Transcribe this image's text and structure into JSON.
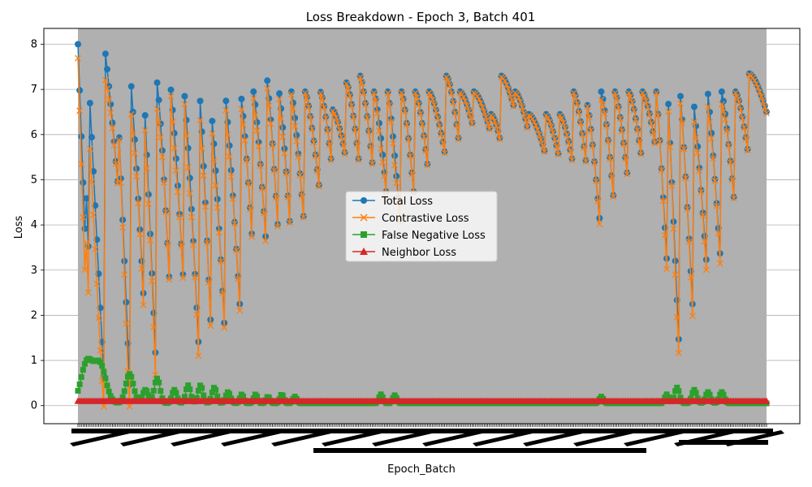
{
  "chart_data": {
    "type": "line",
    "title": "Loss Breakdown - Epoch 3, Batch 401",
    "xlabel": "Epoch_Batch",
    "ylabel": "Loss",
    "ylim": [
      -0.4,
      8.35
    ],
    "yticks": [
      0,
      1,
      2,
      3,
      4,
      5,
      6,
      7,
      8
    ],
    "ytick_labels": [
      "0",
      "1",
      "2",
      "3",
      "4",
      "5",
      "6",
      "7",
      "8"
    ],
    "grid": "horizontal",
    "legend_position": "center",
    "n_points": 401,
    "segments": [
      {
        "start": 0.0,
        "peak": 8.0,
        "end": 3.1,
        "shape": 1.0
      },
      {
        "start": 0.012,
        "peak": 4.8,
        "end": 3.1,
        "shape": 1.0
      },
      {
        "start": 0.016,
        "peak": 7.15,
        "end": 0.2,
        "shape": 1.0
      },
      {
        "start": 0.039,
        "peak": 7.9,
        "end": 4.7,
        "shape": 0.9
      },
      {
        "start": 0.059,
        "peak": 6.3,
        "end": 0.1,
        "shape": 1.0
      },
      {
        "start": 0.076,
        "peak": 7.35,
        "end": 2.2,
        "shape": 0.9
      },
      {
        "start": 0.096,
        "peak": 6.95,
        "end": 0.3,
        "shape": 1.0
      },
      {
        "start": 0.115,
        "peak": 7.15,
        "end": 2.7,
        "shape": 0.8
      },
      {
        "start": 0.133,
        "peak": 7.25,
        "end": 2.2,
        "shape": 0.8
      },
      {
        "start": 0.155,
        "peak": 6.85,
        "end": 0.8,
        "shape": 0.9
      },
      {
        "start": 0.177,
        "peak": 6.85,
        "end": 1.0,
        "shape": 0.9
      },
      {
        "start": 0.195,
        "peak": 6.3,
        "end": 1.4,
        "shape": 0.9
      },
      {
        "start": 0.214,
        "peak": 6.9,
        "end": 2.0,
        "shape": 0.9
      },
      {
        "start": 0.236,
        "peak": 6.95,
        "end": 3.2,
        "shape": 0.8
      },
      {
        "start": 0.255,
        "peak": 6.95,
        "end": 3.4,
        "shape": 0.8
      },
      {
        "start": 0.274,
        "peak": 7.3,
        "end": 3.5,
        "shape": 0.8
      },
      {
        "start": 0.292,
        "peak": 6.95,
        "end": 3.5,
        "shape": 0.8
      },
      {
        "start": 0.31,
        "peak": 6.95,
        "end": 3.7,
        "shape": 0.8
      },
      {
        "start": 0.33,
        "peak": 6.95,
        "end": 4.6,
        "shape": 0.7
      },
      {
        "start": 0.352,
        "peak": 6.95,
        "end": 5.1,
        "shape": 0.6
      },
      {
        "start": 0.37,
        "peak": 6.55,
        "end": 5.4,
        "shape": 0.6
      },
      {
        "start": 0.39,
        "peak": 7.15,
        "end": 5.1,
        "shape": 0.6
      },
      {
        "start": 0.41,
        "peak": 7.3,
        "end": 5.0,
        "shape": 0.7
      },
      {
        "start": 0.43,
        "peak": 6.95,
        "end": 4.3,
        "shape": 0.7
      },
      {
        "start": 0.45,
        "peak": 6.95,
        "end": 3.6,
        "shape": 0.8
      },
      {
        "start": 0.47,
        "peak": 6.95,
        "end": 4.3,
        "shape": 0.7
      },
      {
        "start": 0.49,
        "peak": 6.95,
        "end": 5.0,
        "shape": 0.6
      },
      {
        "start": 0.51,
        "peak": 6.95,
        "end": 5.4,
        "shape": 0.6
      },
      {
        "start": 0.535,
        "peak": 7.3,
        "end": 5.6,
        "shape": 0.5
      },
      {
        "start": 0.555,
        "peak": 6.95,
        "end": 6.1,
        "shape": 0.5
      },
      {
        "start": 0.575,
        "peak": 6.95,
        "end": 6.0,
        "shape": 0.5
      },
      {
        "start": 0.6,
        "peak": 6.45,
        "end": 5.75,
        "shape": 0.5
      },
      {
        "start": 0.615,
        "peak": 7.3,
        "end": 6.5,
        "shape": 0.5
      },
      {
        "start": 0.635,
        "peak": 6.95,
        "end": 6.0,
        "shape": 0.5
      },
      {
        "start": 0.655,
        "peak": 6.45,
        "end": 5.5,
        "shape": 0.5
      },
      {
        "start": 0.68,
        "peak": 6.45,
        "end": 5.4,
        "shape": 0.6
      },
      {
        "start": 0.7,
        "peak": 6.45,
        "end": 5.25,
        "shape": 0.6
      },
      {
        "start": 0.72,
        "peak": 6.95,
        "end": 5.1,
        "shape": 0.6
      },
      {
        "start": 0.74,
        "peak": 6.65,
        "end": 3.7,
        "shape": 0.8
      },
      {
        "start": 0.76,
        "peak": 6.95,
        "end": 4.2,
        "shape": 0.7
      },
      {
        "start": 0.78,
        "peak": 6.95,
        "end": 4.8,
        "shape": 0.7
      },
      {
        "start": 0.8,
        "peak": 6.95,
        "end": 5.3,
        "shape": 0.6
      },
      {
        "start": 0.82,
        "peak": 6.95,
        "end": 5.6,
        "shape": 0.6
      },
      {
        "start": 0.84,
        "peak": 6.95,
        "end": 2.7,
        "shape": 0.9
      },
      {
        "start": 0.857,
        "peak": 6.85,
        "end": 0.6,
        "shape": 1.0
      },
      {
        "start": 0.875,
        "peak": 6.85,
        "end": 2.1,
        "shape": 0.9
      },
      {
        "start": 0.893,
        "peak": 6.9,
        "end": 2.7,
        "shape": 0.9
      },
      {
        "start": 0.915,
        "peak": 6.9,
        "end": 2.8,
        "shape": 0.9
      },
      {
        "start": 0.935,
        "peak": 6.95,
        "end": 4.2,
        "shape": 0.8
      },
      {
        "start": 0.955,
        "peak": 6.95,
        "end": 5.4,
        "shape": 0.6
      },
      {
        "start": 0.975,
        "peak": 7.35,
        "end": 6.5,
        "shape": 0.5
      }
    ],
    "false_negative_bumps": [
      {
        "center": 0.013,
        "height": 0.9,
        "width": 0.012
      },
      {
        "center": 0.032,
        "height": 0.85,
        "width": 0.012
      },
      {
        "center": 0.075,
        "height": 0.65,
        "width": 0.008
      },
      {
        "center": 0.098,
        "height": 0.3,
        "width": 0.006
      },
      {
        "center": 0.115,
        "height": 0.55,
        "width": 0.006
      },
      {
        "center": 0.14,
        "height": 0.3,
        "width": 0.005
      },
      {
        "center": 0.16,
        "height": 0.4,
        "width": 0.005
      },
      {
        "center": 0.178,
        "height": 0.4,
        "width": 0.005
      },
      {
        "center": 0.198,
        "height": 0.35,
        "width": 0.005
      },
      {
        "center": 0.218,
        "height": 0.25,
        "width": 0.005
      },
      {
        "center": 0.238,
        "height": 0.2,
        "width": 0.004
      },
      {
        "center": 0.258,
        "height": 0.2,
        "width": 0.004
      },
      {
        "center": 0.276,
        "height": 0.15,
        "width": 0.004
      },
      {
        "center": 0.296,
        "height": 0.2,
        "width": 0.004
      },
      {
        "center": 0.315,
        "height": 0.15,
        "width": 0.004
      },
      {
        "center": 0.44,
        "height": 0.2,
        "width": 0.004
      },
      {
        "center": 0.46,
        "height": 0.18,
        "width": 0.004
      },
      {
        "center": 0.76,
        "height": 0.15,
        "width": 0.004
      },
      {
        "center": 0.855,
        "height": 0.2,
        "width": 0.004
      },
      {
        "center": 0.87,
        "height": 0.35,
        "width": 0.005
      },
      {
        "center": 0.895,
        "height": 0.3,
        "width": 0.005
      },
      {
        "center": 0.915,
        "height": 0.25,
        "width": 0.005
      },
      {
        "center": 0.935,
        "height": 0.25,
        "width": 0.005
      }
    ],
    "series": [
      {
        "name": "Total Loss",
        "color": "#1f77b4",
        "marker": "circle"
      },
      {
        "name": "Contrastive Loss",
        "color": "#ff7f0e",
        "marker": "x"
      },
      {
        "name": "False Negative Loss",
        "color": "#2ca02c",
        "marker": "square"
      },
      {
        "name": "Neighbor Loss",
        "color": "#d62728",
        "marker": "triangle",
        "constant_value": 0.1
      }
    ],
    "false_negative_baseline": 0.05,
    "plot_background": "#b0b0b0"
  }
}
